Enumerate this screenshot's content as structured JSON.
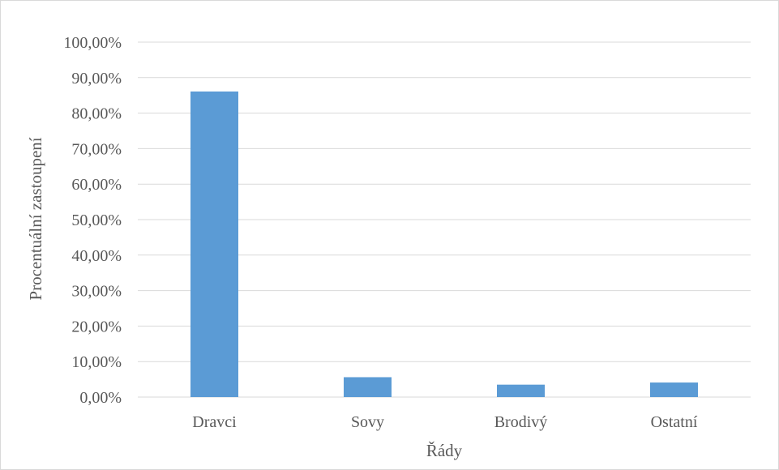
{
  "chart_data": {
    "type": "bar",
    "categories": [
      "Dravci",
      "Sovy",
      "Brodivý",
      "Ostatní"
    ],
    "values": [
      86.1,
      5.6,
      3.5,
      4.1
    ],
    "xlabel": "Řády",
    "ylabel": "Procentuální zastoupení",
    "ylim": [
      0,
      100
    ],
    "ytick_values": [
      0,
      10,
      20,
      30,
      40,
      50,
      60,
      70,
      80,
      90,
      100
    ],
    "yticks": [
      "0,00%",
      "10,00%",
      "20,00%",
      "30,00%",
      "40,00%",
      "50,00%",
      "60,00%",
      "70,00%",
      "80,00%",
      "90,00%",
      "100,00%"
    ],
    "grid": true,
    "legend": "none",
    "colors": {
      "bar": "#5b9bd5",
      "grid": "#d9d9d9",
      "text": "#595959"
    }
  }
}
